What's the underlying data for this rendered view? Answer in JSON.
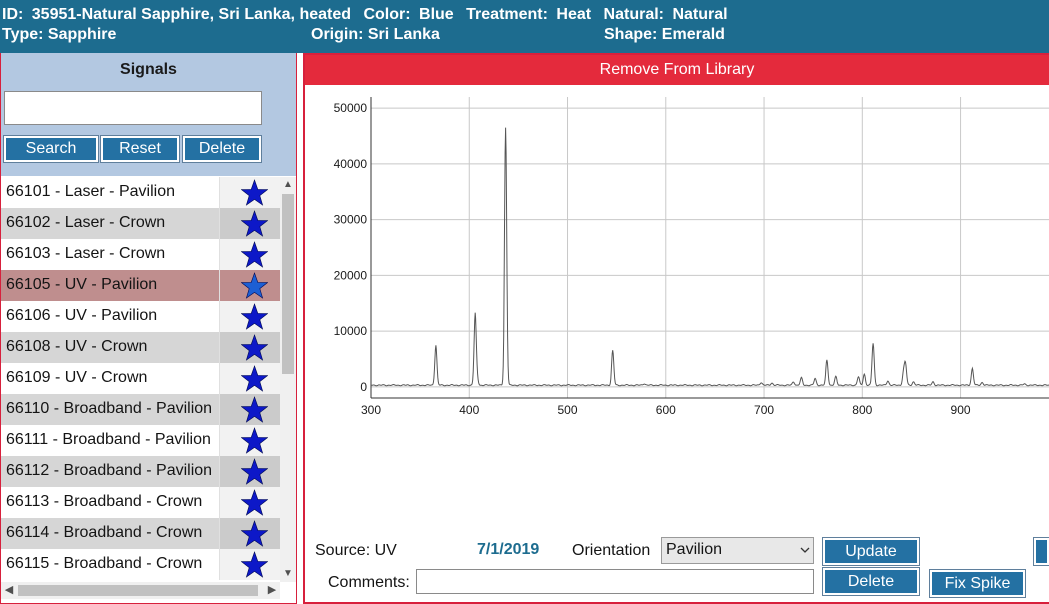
{
  "header": {
    "line1": [
      {
        "key": "ID:",
        "value": "35951-Natural Sapphire, Sri Lanka, heated"
      },
      {
        "key": "Color:",
        "value": "Blue"
      },
      {
        "key": "Treatment:",
        "value": "Heat"
      },
      {
        "key": "Natural:",
        "value": "Natural"
      }
    ],
    "type_label": "Type: Sapphire",
    "origin_label": "Origin: Sri Lanka",
    "shape_label": "Shape: Emerald"
  },
  "signals": {
    "title": "Signals",
    "search_value": "",
    "search_button": "Search",
    "reset_button": "Reset",
    "delete_button": "Delete",
    "items": [
      {
        "label": "66101 - Laser - Pavilion",
        "starred": true
      },
      {
        "label": "66102 - Laser - Crown",
        "starred": true
      },
      {
        "label": "66103 - Laser - Crown",
        "starred": true
      },
      {
        "label": "66105 - UV - Pavilion",
        "starred": true,
        "selected": true
      },
      {
        "label": "66106 - UV - Pavilion",
        "starred": true
      },
      {
        "label": "66108 - UV - Crown",
        "starred": true
      },
      {
        "label": "66109 - UV - Crown",
        "starred": true
      },
      {
        "label": "66110 - Broadband - Pavilion",
        "starred": true
      },
      {
        "label": "66111 - Broadband - Pavilion",
        "starred": true
      },
      {
        "label": "66112 - Broadband - Pavilion",
        "starred": true
      },
      {
        "label": "66113 - Broadband - Crown",
        "starred": true
      },
      {
        "label": "66114 - Broadband - Crown",
        "starred": true
      },
      {
        "label": "66115 - Broadband - Crown",
        "starred": true
      }
    ],
    "star_icon": "star-icon"
  },
  "detail": {
    "remove_button": "Remove From Library",
    "source_label": "Source: UV",
    "date": "7/1/2019",
    "orientation_label": "Orientation",
    "orientation_value": "Pavilion",
    "update_button": "Update",
    "delete_button": "Delete",
    "fix_spike_button": "Fix Spike",
    "comments_label": "Comments:",
    "comments_value": ""
  },
  "colors": {
    "header_bg": "#1d6c8f",
    "accent_red": "#e42a3c",
    "button_blue": "#2471a3",
    "selected_row": "#bf8e8e",
    "star_fill": "#0d18c8",
    "star_selected": "#1c5fd4",
    "alt_row": "#d6d6d6",
    "spectrum_line": "#555555"
  },
  "chart_data": {
    "type": "line",
    "title": "",
    "xlabel": "",
    "ylabel": "",
    "xlim": [
      300,
      990
    ],
    "ylim": [
      -2000,
      52000
    ],
    "xticks": [
      300,
      400,
      500,
      600,
      700,
      800,
      900
    ],
    "yticks": [
      0,
      10000,
      20000,
      30000,
      40000,
      50000
    ],
    "grid": true,
    "baseline": 300,
    "peaks": [
      {
        "x": 366,
        "y": 7500
      },
      {
        "x": 406,
        "y": 13000
      },
      {
        "x": 408,
        "y": 1500
      },
      {
        "x": 437,
        "y": 46500
      },
      {
        "x": 546,
        "y": 6500
      },
      {
        "x": 578,
        "y": 600
      },
      {
        "x": 697,
        "y": 800
      },
      {
        "x": 708,
        "y": 700
      },
      {
        "x": 730,
        "y": 900
      },
      {
        "x": 738,
        "y": 1600
      },
      {
        "x": 752,
        "y": 1500
      },
      {
        "x": 764,
        "y": 4800
      },
      {
        "x": 773,
        "y": 1800
      },
      {
        "x": 796,
        "y": 1800
      },
      {
        "x": 802,
        "y": 2300
      },
      {
        "x": 811,
        "y": 7800
      },
      {
        "x": 826,
        "y": 1100
      },
      {
        "x": 842,
        "y": 2600
      },
      {
        "x": 844,
        "y": 4000
      },
      {
        "x": 852,
        "y": 900
      },
      {
        "x": 872,
        "y": 900
      },
      {
        "x": 912,
        "y": 3300
      },
      {
        "x": 922,
        "y": 800
      },
      {
        "x": 965,
        "y": 500
      }
    ]
  }
}
